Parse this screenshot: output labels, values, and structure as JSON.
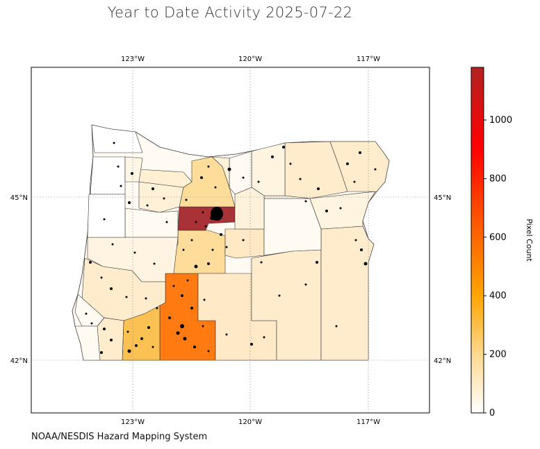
{
  "title": "Year to Date Activity 2025-07-22",
  "credit": "NOAA/NESDIS Hazard Mapping System",
  "map": {
    "region": "Oregon counties",
    "lon_ticks": [
      "123°W",
      "120°W",
      "117°W"
    ],
    "lat_ticks": [
      "45°N",
      "42°N"
    ],
    "gridlines": true
  },
  "colorbar": {
    "label": "Pixel Count",
    "ticks": [
      "0",
      "200",
      "400",
      "600",
      "800",
      "1000"
    ],
    "min": 0,
    "max": 1180,
    "colors": {
      "low": "#ffffff",
      "c200": "#ffd98f",
      "c400": "#ffa500",
      "c700": "#ff4500",
      "c900": "#ff0000",
      "high": "#b22222"
    }
  },
  "colors": {
    "outline": "#333333",
    "grid": "#9a9a9a",
    "dots": "#000000",
    "jefferson": "#a83236",
    "klamath": "#ff7a10",
    "jackson": "#fbc153",
    "crook": "#fedc9a",
    "pale": "#fff0d6"
  }
}
